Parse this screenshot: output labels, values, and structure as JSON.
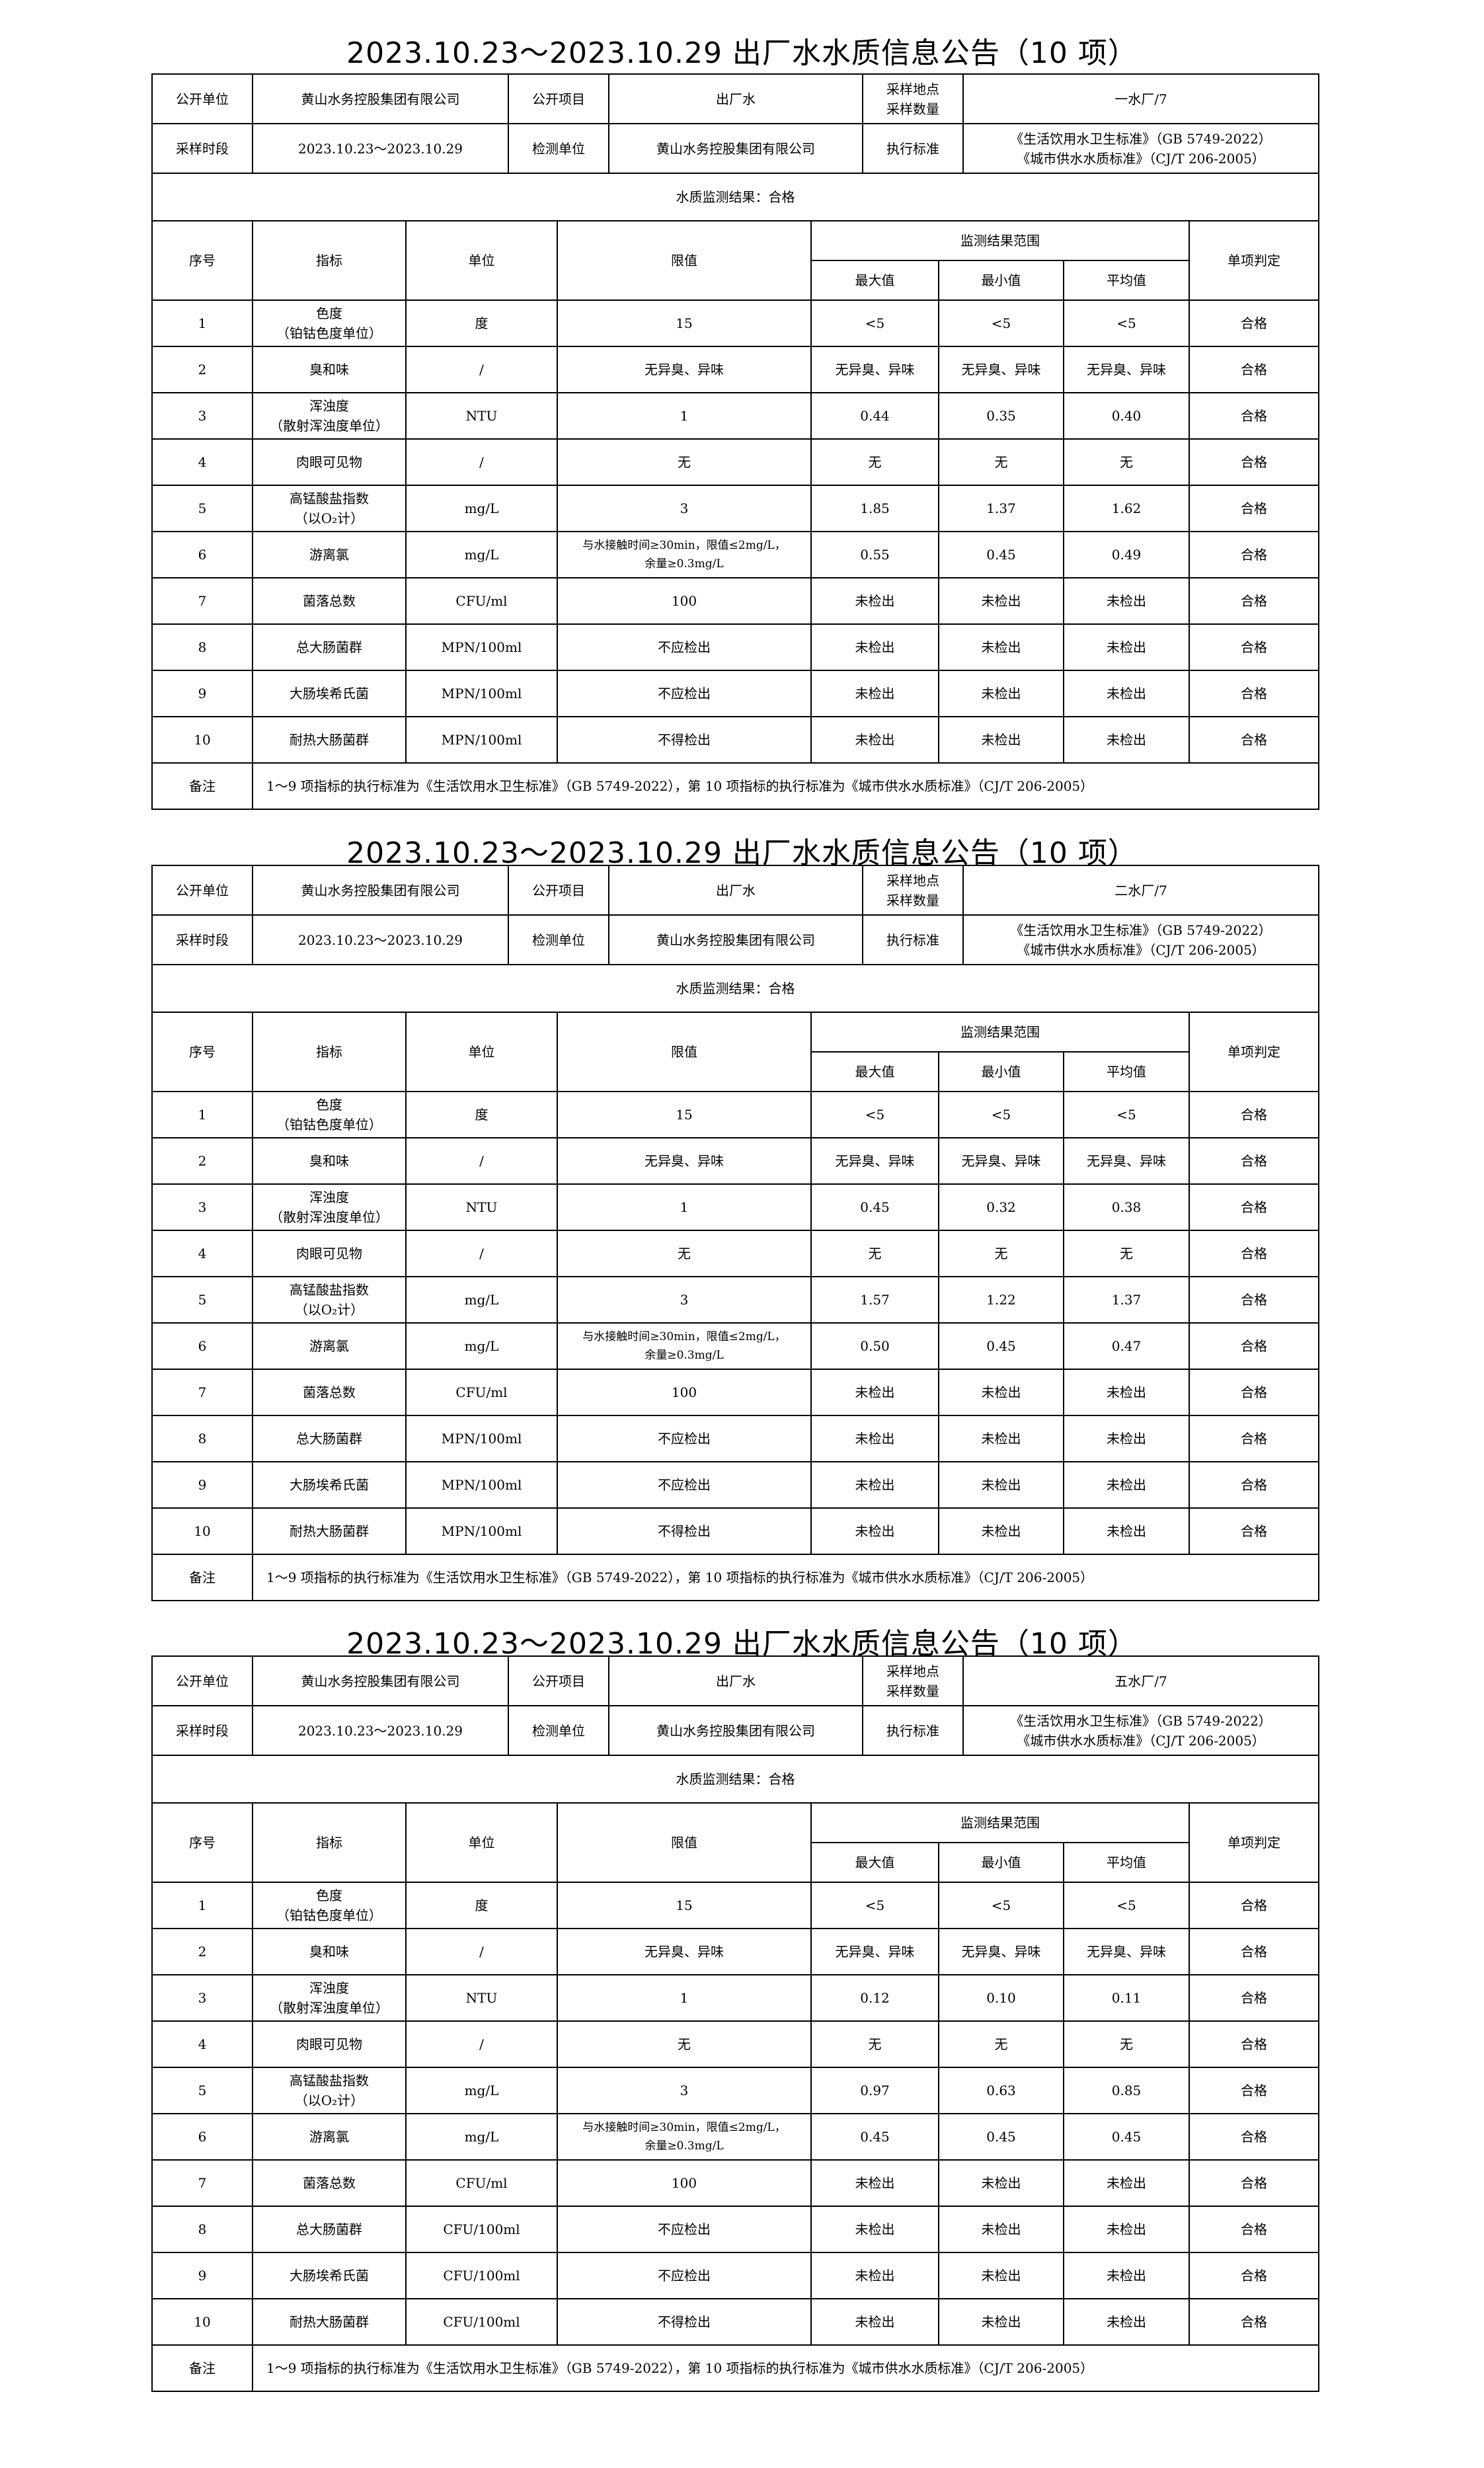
{
  "announcements": [
    {
      "title": "2023.10.23～2023.10.29 出厂水水质信息公告（10 项）",
      "info": {
        "unit_label": "公开单位",
        "unit_value": "黄山水务控股集团有限公司",
        "item_label": "公开项目",
        "item_value": "出厂水",
        "site_label": "采样地点\n采样数量",
        "site_value": "一水厂/7",
        "period_label": "采样时段",
        "period_value": "2023.10.23～2023.10.29",
        "lab_label": "检测单位",
        "lab_value": "黄山水务控股集团有限公司",
        "std_label": "执行标准",
        "std_value": "《生活饮用水卫生标准》（GB 5749-2022）\n《城市供水水质标准》（CJ/T 206-2005）"
      },
      "result": "水质监测结果：合格",
      "rows": [
        [
          "1",
          "色度\n（铂钴色度单位）",
          "度",
          "15",
          "<5",
          "<5",
          "<5",
          "合格"
        ],
        [
          "2",
          "臭和味",
          "/",
          "无异臭、异味",
          "无异臭、异味",
          "无异臭、异味",
          "无异臭、异味",
          "合格"
        ],
        [
          "3",
          "浑浊度\n（散射浑浊度单位）",
          "NTU",
          "1",
          "0.44",
          "0.35",
          "0.40",
          "合格"
        ],
        [
          "4",
          "肉眼可见物",
          "/",
          "无",
          "无",
          "无",
          "无",
          "合格"
        ],
        [
          "5",
          "高锰酸盐指数\n（以O₂计）",
          "mg/L",
          "3",
          "1.85",
          "1.37",
          "1.62",
          "合格"
        ],
        [
          "6",
          "游离氯",
          "mg/L",
          "与水接触时间≥30min，限值≤2mg/L，\n余量≥0.3mg/L",
          "0.55",
          "0.45",
          "0.49",
          "合格"
        ],
        [
          "7",
          "菌落总数",
          "CFU/ml",
          "100",
          "未检出",
          "未检出",
          "未检出",
          "合格"
        ],
        [
          "8",
          "总大肠菌群",
          "MPN/100ml",
          "不应检出",
          "未检出",
          "未检出",
          "未检出",
          "合格"
        ],
        [
          "9",
          "大肠埃希氏菌",
          "MPN/100ml",
          "不应检出",
          "未检出",
          "未检出",
          "未检出",
          "合格"
        ],
        [
          "10",
          "耐热大肠菌群",
          "MPN/100ml",
          "不得检出",
          "未检出",
          "未检出",
          "未检出",
          "合格"
        ]
      ]
    },
    {
      "title": "2023.10.23～2023.10.29 出厂水水质信息公告（10 项）",
      "info": {
        "unit_label": "公开单位",
        "unit_value": "黄山水务控股集团有限公司",
        "item_label": "公开项目",
        "item_value": "出厂水",
        "site_label": "采样地点\n采样数量",
        "site_value": "二水厂/7",
        "period_label": "采样时段",
        "period_value": "2023.10.23～2023.10.29",
        "lab_label": "检测单位",
        "lab_value": "黄山水务控股集团有限公司",
        "std_label": "执行标准",
        "std_value": "《生活饮用水卫生标准》（GB 5749-2022）\n《城市供水水质标准》（CJ/T 206-2005）"
      },
      "result": "水质监测结果：合格",
      "rows": [
        [
          "1",
          "色度\n（铂钴色度单位）",
          "度",
          "15",
          "<5",
          "<5",
          "<5",
          "合格"
        ],
        [
          "2",
          "臭和味",
          "/",
          "无异臭、异味",
          "无异臭、异味",
          "无异臭、异味",
          "无异臭、异味",
          "合格"
        ],
        [
          "3",
          "浑浊度\n（散射浑浊度单位）",
          "NTU",
          "1",
          "0.45",
          "0.32",
          "0.38",
          "合格"
        ],
        [
          "4",
          "肉眼可见物",
          "/",
          "无",
          "无",
          "无",
          "无",
          "合格"
        ],
        [
          "5",
          "高锰酸盐指数\n（以O₂计）",
          "mg/L",
          "3",
          "1.57",
          "1.22",
          "1.37",
          "合格"
        ],
        [
          "6",
          "游离氯",
          "mg/L",
          "与水接触时间≥30min，限值≤2mg/L，\n余量≥0.3mg/L",
          "0.50",
          "0.45",
          "0.47",
          "合格"
        ],
        [
          "7",
          "菌落总数",
          "CFU/ml",
          "100",
          "未检出",
          "未检出",
          "未检出",
          "合格"
        ],
        [
          "8",
          "总大肠菌群",
          "MPN/100ml",
          "不应检出",
          "未检出",
          "未检出",
          "未检出",
          "合格"
        ],
        [
          "9",
          "大肠埃希氏菌",
          "MPN/100ml",
          "不应检出",
          "未检出",
          "未检出",
          "未检出",
          "合格"
        ],
        [
          "10",
          "耐热大肠菌群",
          "MPN/100ml",
          "不得检出",
          "未检出",
          "未检出",
          "未检出",
          "合格"
        ]
      ]
    },
    {
      "title": "2023.10.23～2023.10.29 出厂水水质信息公告（10 项）",
      "info": {
        "unit_label": "公开单位",
        "unit_value": "黄山水务控股集团有限公司",
        "item_label": "公开项目",
        "item_value": "出厂水",
        "site_label": "采样地点\n采样数量",
        "site_value": "五水厂/7",
        "period_label": "采样时段",
        "period_value": "2023.10.23～2023.10.29",
        "lab_label": "检测单位",
        "lab_value": "黄山水务控股集团有限公司",
        "std_label": "执行标准",
        "std_value": "《生活饮用水卫生标准》（GB 5749-2022）\n《城市供水水质标准》（CJ/T 206-2005）"
      },
      "result": "水质监测结果：合格",
      "rows": [
        [
          "1",
          "色度\n（铂钴色度单位）",
          "度",
          "15",
          "<5",
          "<5",
          "<5",
          "合格"
        ],
        [
          "2",
          "臭和味",
          "/",
          "无异臭、异味",
          "无异臭、异味",
          "无异臭、异味",
          "无异臭、异味",
          "合格"
        ],
        [
          "3",
          "浑浊度\n（散射浑浊度单位）",
          "NTU",
          "1",
          "0.12",
          "0.10",
          "0.11",
          "合格"
        ],
        [
          "4",
          "肉眼可见物",
          "/",
          "无",
          "无",
          "无",
          "无",
          "合格"
        ],
        [
          "5",
          "高锰酸盐指数\n（以O₂计）",
          "mg/L",
          "3",
          "0.97",
          "0.63",
          "0.85",
          "合格"
        ],
        [
          "6",
          "游离氯",
          "mg/L",
          "与水接触时间≥30min，限值≤2mg/L，\n余量≥0.3mg/L",
          "0.45",
          "0.45",
          "0.45",
          "合格"
        ],
        [
          "7",
          "菌落总数",
          "CFU/ml",
          "100",
          "未检出",
          "未检出",
          "未检出",
          "合格"
        ],
        [
          "8",
          "总大肠菌群",
          "CFU/100ml",
          "不应检出",
          "未检出",
          "未检出",
          "未检出",
          "合格"
        ],
        [
          "9",
          "大肠埃希氏菌",
          "CFU/100ml",
          "不应检出",
          "未检出",
          "未检出",
          "未检出",
          "合格"
        ],
        [
          "10",
          "耐热大肠菌群",
          "CFU/100ml",
          "不得检出",
          "未检出",
          "未检出",
          "未检出",
          "合格"
        ]
      ]
    }
  ],
  "headers": {
    "seq": "序号",
    "indicator": "指标",
    "unit": "单位",
    "limit": "限值",
    "range": "监测结果范围",
    "max": "最大值",
    "min": "最小值",
    "avg": "平均值",
    "judge": "单项判定"
  },
  "remark": {
    "label": "备注",
    "text": "1～9 项指标的执行标准为《生活饮用水卫生标准》（GB 5749-2022），第 10 项指标的执行标准为《城市供水水质标准》（CJ/T 206-2005）"
  }
}
